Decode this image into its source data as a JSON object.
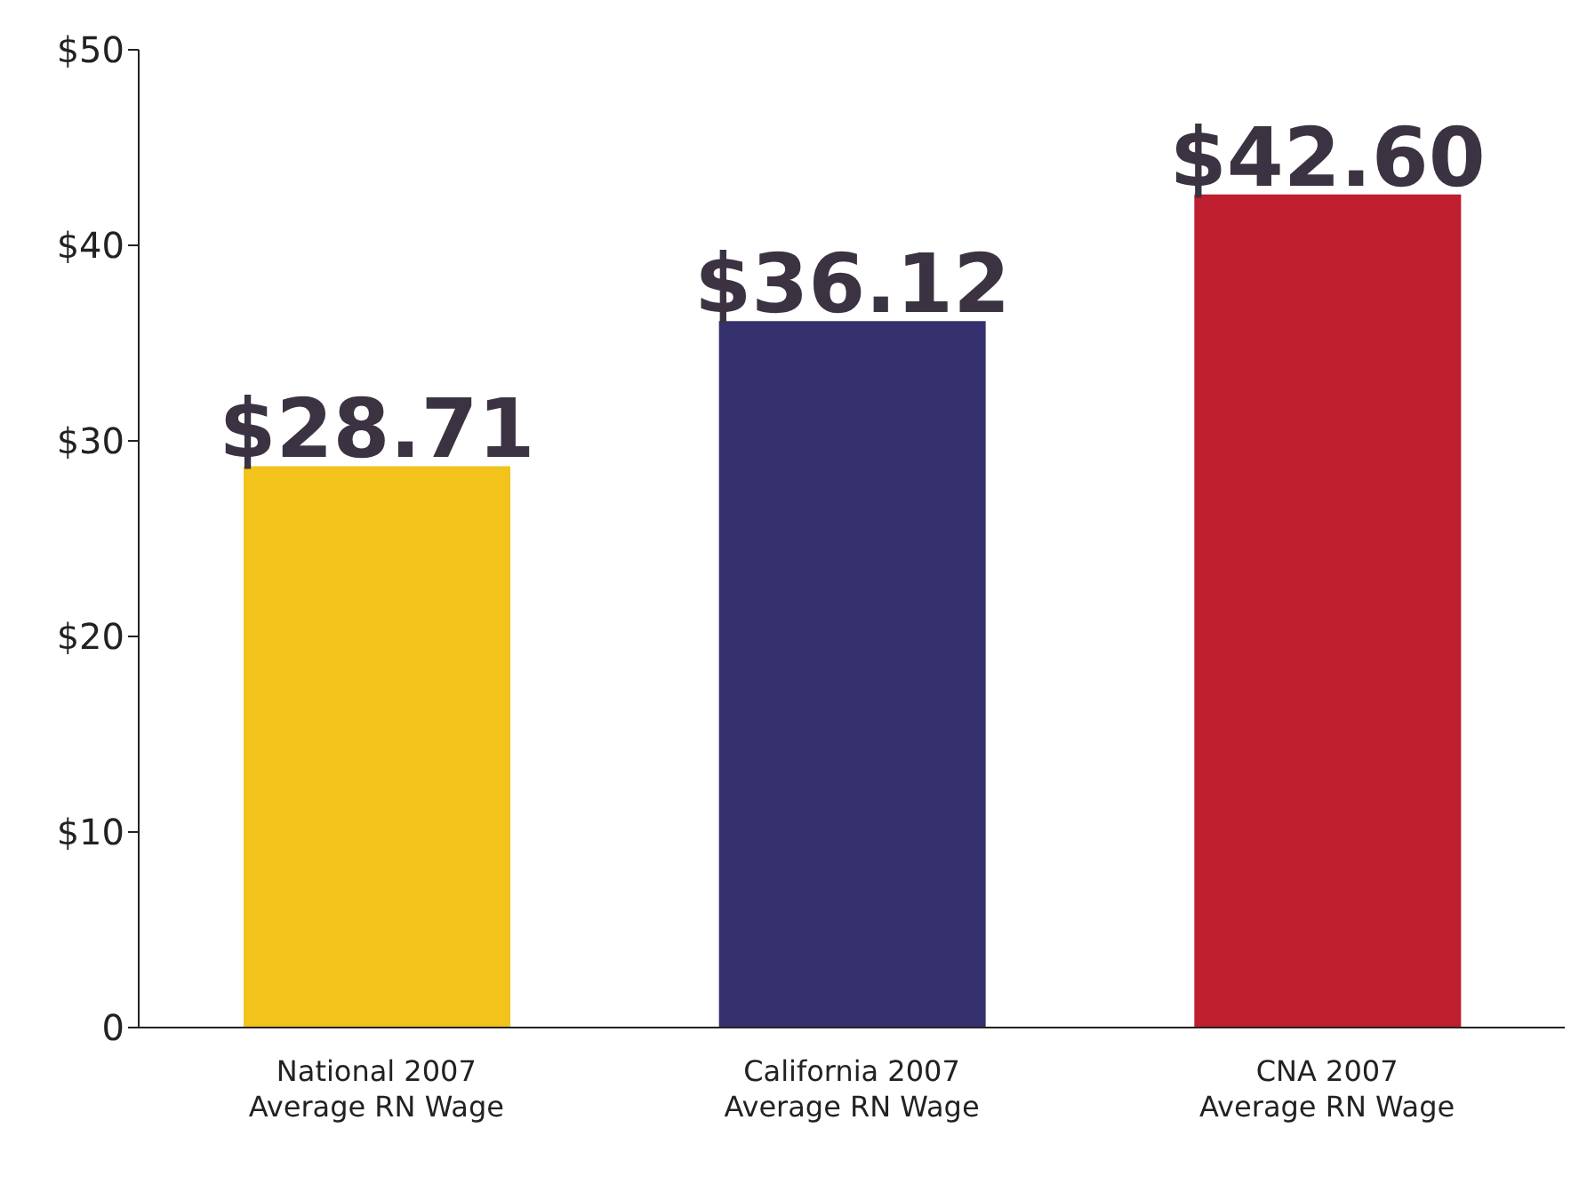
{
  "chart_data": {
    "type": "bar",
    "categories": [
      "National 2007\nAverage RN Wage",
      "California 2007\nAverage RN Wage",
      "CNA 2007\nAverage RN Wage"
    ],
    "values": [
      28.71,
      36.12,
      42.6
    ],
    "colors": [
      "#f2c31b",
      "#35316f",
      "#be1e2d"
    ],
    "value_labels": [
      "$28.71",
      "$36.12",
      "$42.60"
    ],
    "ylim": [
      0,
      50
    ],
    "yticks": [
      0,
      {
        "value": 10,
        "label": "$10"
      },
      {
        "value": 20,
        "label": "$20"
      },
      {
        "value": 30,
        "label": "$30"
      },
      {
        "value": 40,
        "label": "$40"
      },
      {
        "value": 50,
        "label": "$50"
      }
    ],
    "grid": false,
    "legend": false
  }
}
